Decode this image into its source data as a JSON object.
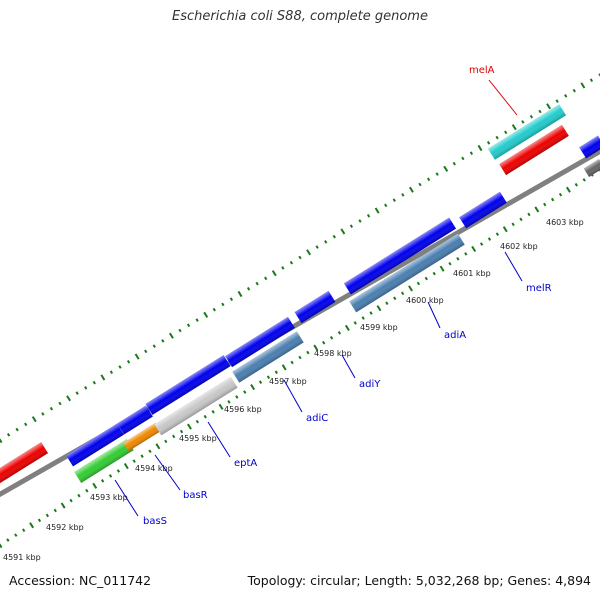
{
  "title": "Escherichia coli S88, complete genome",
  "footer": {
    "accession": "Accession: NC_011742",
    "topology": "Topology: circular; Length: 5,032,268 bp; Genes: 4,894"
  },
  "colors": {
    "backbone": "#808080",
    "tick": "#1a7a1a",
    "label_blue": "#0000cc",
    "label_red": "#dd0000",
    "gene_blue": "#0000ee",
    "gene_red": "#ee0000",
    "gene_cyan": "#22cccc",
    "gene_steel": "#4a7fb0",
    "gene_green": "#33cc33",
    "gene_orange": "#ee8800",
    "gene_gray": "#c8c8c8",
    "gene_darkgray": "#666666"
  },
  "ticks": [
    "4591 kbp",
    "4592 kbp",
    "4593 kbp",
    "4594 kbp",
    "4595 kbp",
    "4596 kbp",
    "4597 kbp",
    "4598 kbp",
    "4599 kbp",
    "4600 kbp",
    "4601 kbp",
    "4602 kbp",
    "4603 kbp"
  ],
  "gene_labels": [
    {
      "name": "basS",
      "color": "blue"
    },
    {
      "name": "basR",
      "color": "blue"
    },
    {
      "name": "eptA",
      "color": "blue"
    },
    {
      "name": "adiC",
      "color": "blue"
    },
    {
      "name": "adiY",
      "color": "blue"
    },
    {
      "name": "adiA",
      "color": "blue"
    },
    {
      "name": "melR",
      "color": "blue"
    },
    {
      "name": "melA",
      "color": "red"
    }
  ]
}
